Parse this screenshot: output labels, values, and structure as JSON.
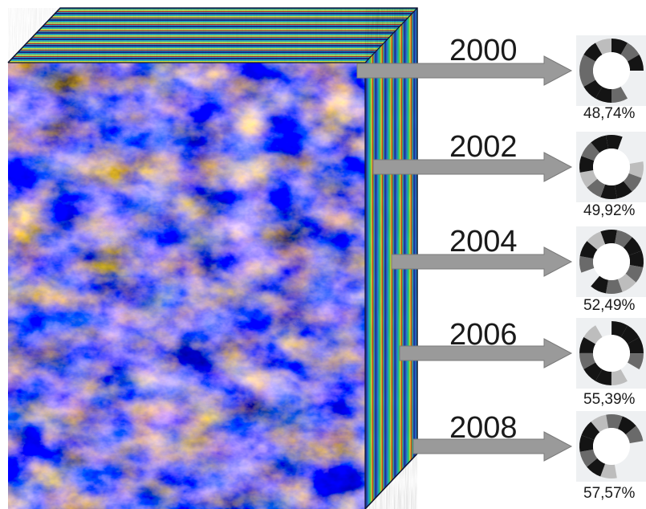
{
  "figure": {
    "entries": [
      {
        "year": "2000",
        "percent": "48,74%"
      },
      {
        "year": "2002",
        "percent": "49,92%"
      },
      {
        "year": "2004",
        "percent": "52,49%"
      },
      {
        "year": "2006",
        "percent": "55,39%"
      },
      {
        "year": "2008",
        "percent": "57,57%"
      }
    ]
  },
  "colors": {
    "arrow": "#9a9a9a",
    "ring_dark": "#141414",
    "ring_mid": "#6a6a6a",
    "ring_light": "#bdbdbd",
    "ring_bg": "#eef0f2"
  },
  "icons": {
    "cube": "satellite-data-cube-icon",
    "arrow": "right-arrow-icon",
    "ring": "ring-segment-chart-icon"
  }
}
